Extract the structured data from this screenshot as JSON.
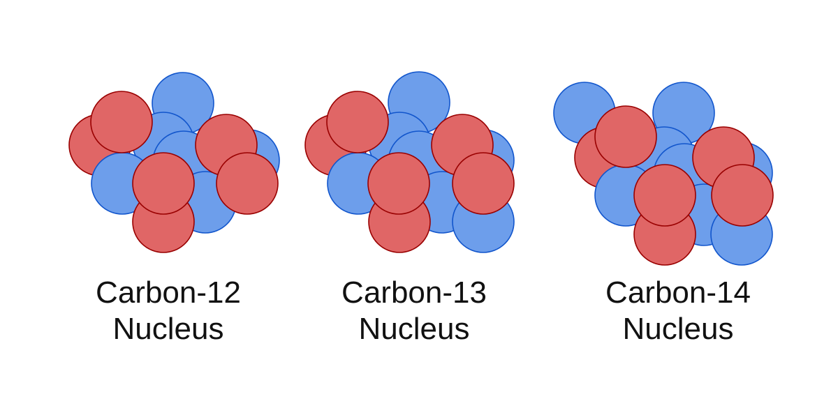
{
  "colors": {
    "proton_fill": "#e06666",
    "proton_stroke": "#990000",
    "neutron_fill": "#6d9eeb",
    "neutron_stroke": "#1155cc",
    "text": "#111111"
  },
  "nuclei": [
    {
      "caption_line1": "Carbon-12",
      "caption_line2": "Nucleus",
      "protons": 6,
      "neutrons": 6
    },
    {
      "caption_line1": "Carbon-13",
      "caption_line2": "Nucleus",
      "protons": 6,
      "neutrons": 7
    },
    {
      "caption_line1": "Carbon-14",
      "caption_line2": "Nucleus",
      "protons": 6,
      "neutrons": 8
    }
  ]
}
